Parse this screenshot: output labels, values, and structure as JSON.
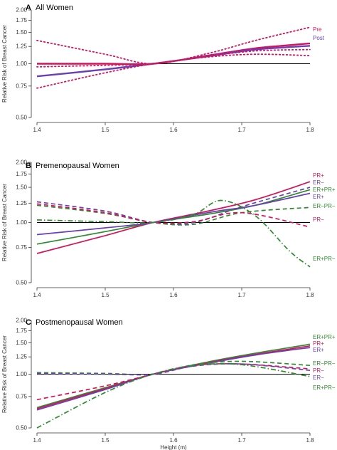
{
  "figure": {
    "x_axis_title": "Height (m)",
    "colors": {
      "magenta": "#d4145a",
      "purple": "#6a3fb5",
      "green": "#2e8b2e",
      "reference": "#000000",
      "axis": "#333333",
      "panel_title": "#000000"
    }
  },
  "chart_data": [
    {
      "panel_letter": "A",
      "title": "All Women",
      "type": "line",
      "ylabel": "Relative Risk of Breast Cancer",
      "y_scale": "log",
      "ylim": [
        0.5,
        2.0
      ],
      "y_ticks": [
        "2.00",
        "1.75",
        "1.50",
        "1.25",
        "1.00",
        "0.75",
        "0.50"
      ],
      "y_tick_values": [
        2.0,
        1.75,
        1.5,
        1.25,
        1.0,
        0.75,
        0.5
      ],
      "xlim": [
        1.4,
        1.8
      ],
      "x_ticks": [
        "1.4",
        "1.5",
        "1.6",
        "1.7",
        "1.8"
      ],
      "x_tick_values": [
        1.4,
        1.5,
        1.6,
        1.7,
        1.8
      ],
      "reference_line": 1.0,
      "legend_position": "right-end labels",
      "series": [
        {
          "name": "Pre",
          "color": "magenta",
          "dash": "solid",
          "width": 2.4,
          "x": [
            1.4,
            1.5,
            1.57,
            1.65,
            1.72,
            1.8
          ],
          "y": [
            1.0,
            1.0,
            1.0,
            1.11,
            1.22,
            1.3
          ]
        },
        {
          "name": "Post",
          "color": "purple",
          "dash": "solid",
          "width": 2.4,
          "x": [
            1.4,
            1.5,
            1.57,
            1.65,
            1.72,
            1.8
          ],
          "y": [
            0.85,
            0.93,
            1.0,
            1.1,
            1.2,
            1.26
          ]
        },
        {
          "color": "magenta",
          "dash": "dot",
          "width": 1.8,
          "x": [
            1.4,
            1.5,
            1.57,
            1.65,
            1.72,
            1.8
          ],
          "y": [
            1.35,
            1.13,
            1.0,
            1.14,
            1.35,
            1.6
          ]
        },
        {
          "color": "magenta",
          "dash": "dot",
          "width": 1.8,
          "x": [
            1.4,
            1.5,
            1.57,
            1.65,
            1.72,
            1.8
          ],
          "y": [
            0.73,
            0.89,
            1.0,
            1.09,
            1.13,
            1.11
          ]
        },
        {
          "color": "magenta",
          "dash": "dot",
          "width": 1.8,
          "x": [
            1.4,
            1.5,
            1.57,
            1.65,
            1.72,
            1.8
          ],
          "y": [
            0.96,
            0.98,
            1.0,
            1.1,
            1.18,
            1.2
          ]
        }
      ]
    },
    {
      "panel_letter": "B",
      "title": "Premenopausal Women",
      "type": "line",
      "ylabel": "Relative Risk of Breast Cancer",
      "y_scale": "log",
      "ylim": [
        0.5,
        2.0
      ],
      "y_ticks": [
        "2.00",
        "1.75",
        "1.50",
        "1.25",
        "1.00",
        "0.75",
        "0.50"
      ],
      "y_tick_values": [
        2.0,
        1.75,
        1.5,
        1.25,
        1.0,
        0.75,
        0.5
      ],
      "xlim": [
        1.4,
        1.8
      ],
      "x_ticks": [
        "1.4",
        "1.5",
        "1.6",
        "1.7",
        "1.8"
      ],
      "x_tick_values": [
        1.4,
        1.5,
        1.6,
        1.7,
        1.8
      ],
      "reference_line": 1.0,
      "legend_position": "right-end labels",
      "series": [
        {
          "name": "PR+",
          "color": "magenta",
          "dash": "solid",
          "width": 1.7,
          "x": [
            1.4,
            1.5,
            1.57,
            1.65,
            1.72,
            1.8
          ],
          "y": [
            0.7,
            0.86,
            1.0,
            1.14,
            1.3,
            1.6
          ]
        },
        {
          "name": "ER−",
          "color": "purple",
          "dash": "dash",
          "width": 1.7,
          "x": [
            1.4,
            1.5,
            1.57,
            1.63,
            1.7,
            1.8
          ],
          "y": [
            1.27,
            1.14,
            1.0,
            1.0,
            1.2,
            1.5
          ]
        },
        {
          "name": "ER+PR+",
          "color": "green",
          "dash": "solid",
          "width": 1.7,
          "x": [
            1.4,
            1.5,
            1.57,
            1.65,
            1.72,
            1.8
          ],
          "y": [
            0.78,
            0.9,
            1.0,
            1.1,
            1.22,
            1.46
          ]
        },
        {
          "name": "ER+",
          "color": "purple",
          "dash": "solid",
          "width": 1.7,
          "x": [
            1.4,
            1.5,
            1.57,
            1.65,
            1.72,
            1.8
          ],
          "y": [
            0.87,
            0.94,
            1.0,
            1.12,
            1.22,
            1.4
          ]
        },
        {
          "name": "ER−PR−",
          "color": "green",
          "dash": "dash",
          "width": 1.7,
          "x": [
            1.4,
            1.5,
            1.57,
            1.63,
            1.7,
            1.8
          ],
          "y": [
            1.22,
            1.11,
            1.0,
            0.98,
            1.12,
            1.19
          ]
        },
        {
          "name": "PR−",
          "color": "magenta",
          "dash": "dash",
          "width": 1.7,
          "x": [
            1.4,
            1.5,
            1.57,
            1.63,
            1.7,
            1.8
          ],
          "y": [
            1.24,
            1.12,
            1.0,
            1.01,
            1.12,
            0.95
          ]
        },
        {
          "name": "ER+PR−",
          "color": "green",
          "dash": "dashdot",
          "width": 1.7,
          "x": [
            1.4,
            1.5,
            1.57,
            1.63,
            1.67,
            1.72,
            1.77,
            1.8
          ],
          "y": [
            1.03,
            1.01,
            1.0,
            1.1,
            1.29,
            1.08,
            0.72,
            0.6
          ]
        }
      ]
    },
    {
      "panel_letter": "C",
      "title": "Postmenopausal Women",
      "type": "line",
      "ylabel": "Relative Risk of Breast Cancer",
      "y_scale": "log",
      "ylim": [
        0.5,
        2.0
      ],
      "y_ticks": [
        "2.00",
        "1.75",
        "1.50",
        "1.25",
        "1.00",
        "0.75",
        "0.50"
      ],
      "y_tick_values": [
        2.0,
        1.75,
        1.5,
        1.25,
        1.0,
        0.75,
        0.5
      ],
      "xlim": [
        1.4,
        1.8
      ],
      "x_ticks": [
        "1.4",
        "1.5",
        "1.6",
        "1.7",
        "1.8"
      ],
      "x_tick_values": [
        1.4,
        1.5,
        1.6,
        1.7,
        1.8
      ],
      "reference_line": 1.0,
      "legend_position": "right-end labels",
      "series": [
        {
          "name": "ER+PR+",
          "color": "green",
          "dash": "solid",
          "width": 1.7,
          "x": [
            1.4,
            1.5,
            1.57,
            1.65,
            1.72,
            1.8
          ],
          "y": [
            0.65,
            0.84,
            1.0,
            1.17,
            1.31,
            1.47
          ]
        },
        {
          "name": "PR+",
          "color": "magenta",
          "dash": "solid",
          "width": 1.7,
          "x": [
            1.4,
            1.5,
            1.57,
            1.65,
            1.72,
            1.8
          ],
          "y": [
            0.64,
            0.83,
            1.0,
            1.16,
            1.29,
            1.44
          ]
        },
        {
          "name": "ER+",
          "color": "purple",
          "dash": "solid",
          "width": 1.7,
          "x": [
            1.4,
            1.5,
            1.57,
            1.65,
            1.72,
            1.8
          ],
          "y": [
            0.63,
            0.82,
            1.0,
            1.15,
            1.28,
            1.41
          ]
        },
        {
          "name": "ER−PR−",
          "color": "green",
          "dash": "dash",
          "width": 1.7,
          "x": [
            1.4,
            1.5,
            1.57,
            1.63,
            1.7,
            1.8
          ],
          "y": [
            1.02,
            1.01,
            1.0,
            1.13,
            1.18,
            1.12
          ]
        },
        {
          "name": "PR−",
          "color": "magenta",
          "dash": "dash",
          "width": 1.7,
          "x": [
            1.4,
            1.5,
            1.57,
            1.63,
            1.7,
            1.8
          ],
          "y": [
            0.72,
            0.86,
            1.0,
            1.12,
            1.14,
            1.07
          ]
        },
        {
          "name": "ER−",
          "color": "purple",
          "dash": "dash",
          "width": 1.7,
          "x": [
            1.4,
            1.5,
            1.57,
            1.63,
            1.7,
            1.8
          ],
          "y": [
            1.01,
            1.0,
            1.0,
            1.11,
            1.14,
            1.05
          ]
        },
        {
          "name": "ER+PR−",
          "color": "green",
          "dash": "dashdot",
          "width": 1.7,
          "x": [
            1.4,
            1.5,
            1.57,
            1.63,
            1.7,
            1.8
          ],
          "y": [
            0.5,
            0.79,
            1.0,
            1.12,
            1.13,
            0.97
          ]
        }
      ]
    }
  ]
}
